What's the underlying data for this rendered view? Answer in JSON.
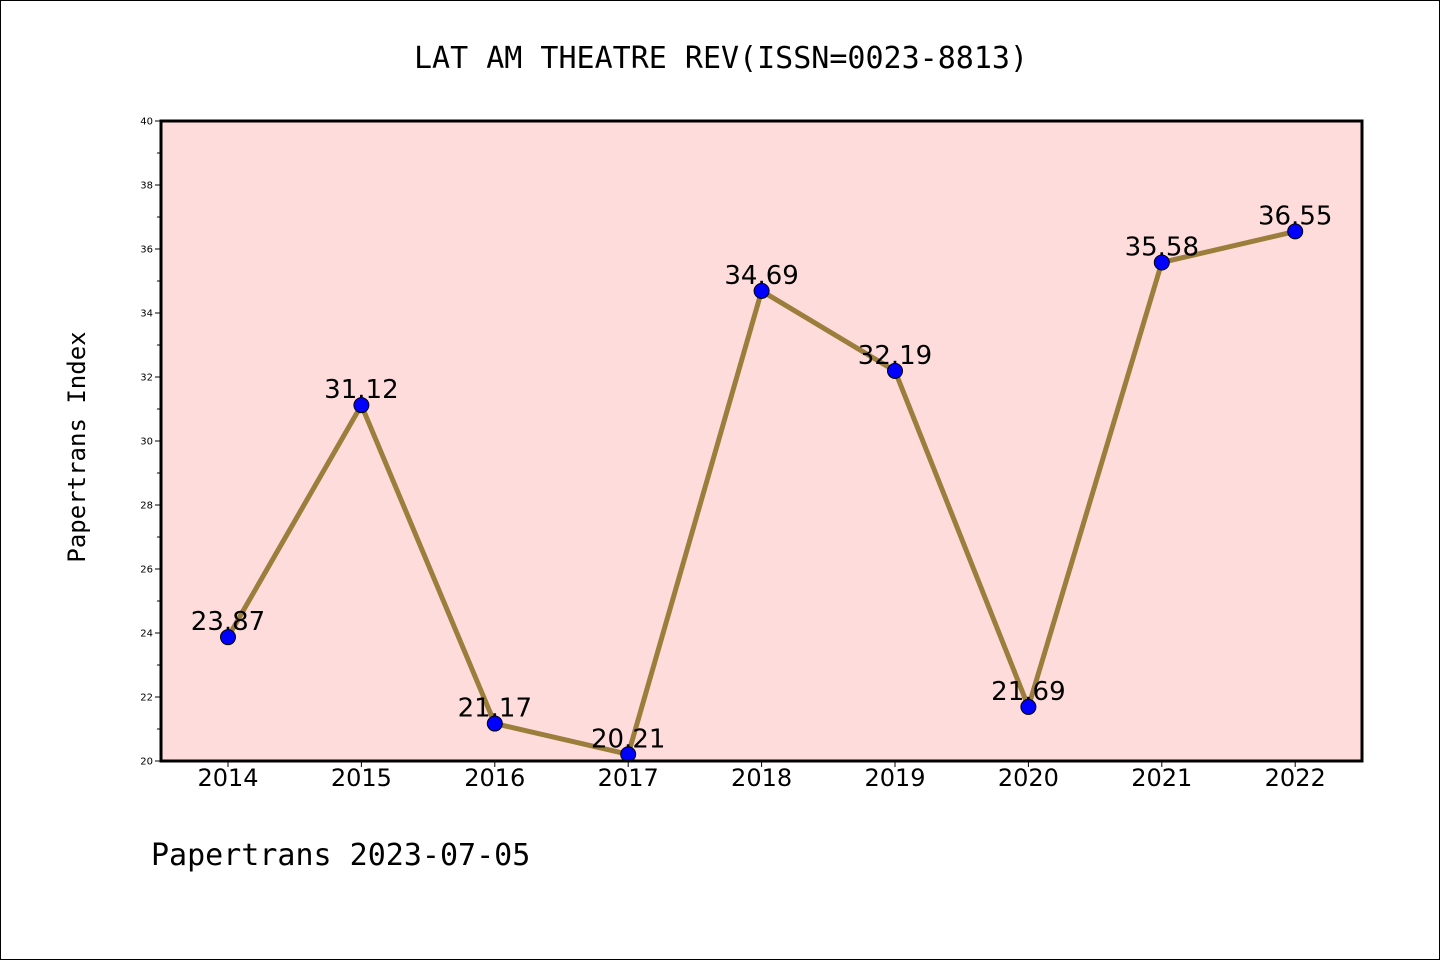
{
  "chart_data": {
    "type": "line",
    "title": "LAT AM THEATRE REV(ISSN=0023-8813)",
    "ylabel": "Papertrans Index",
    "xlabel": "",
    "categories": [
      "2014",
      "2015",
      "2016",
      "2017",
      "2018",
      "2019",
      "2020",
      "2021",
      "2022"
    ],
    "values": [
      23.87,
      31.12,
      21.17,
      20.21,
      34.69,
      32.19,
      21.69,
      35.58,
      36.55
    ],
    "data_labels": [
      "23.87",
      "31.12",
      "21.17",
      "20.21",
      "34.69",
      "32.19",
      "21.69",
      "35.58",
      "36.55"
    ],
    "ylim": [
      20,
      40
    ],
    "yticks": [
      "20",
      "22",
      "24",
      "26",
      "28",
      "30",
      "32",
      "34",
      "36",
      "38",
      "40"
    ],
    "grid": false,
    "colors": {
      "plot_background": "#ffdcdc",
      "line": "#9b7e3c",
      "marker": "#0000ff"
    }
  },
  "footer": "Papertrans 2023-07-05"
}
